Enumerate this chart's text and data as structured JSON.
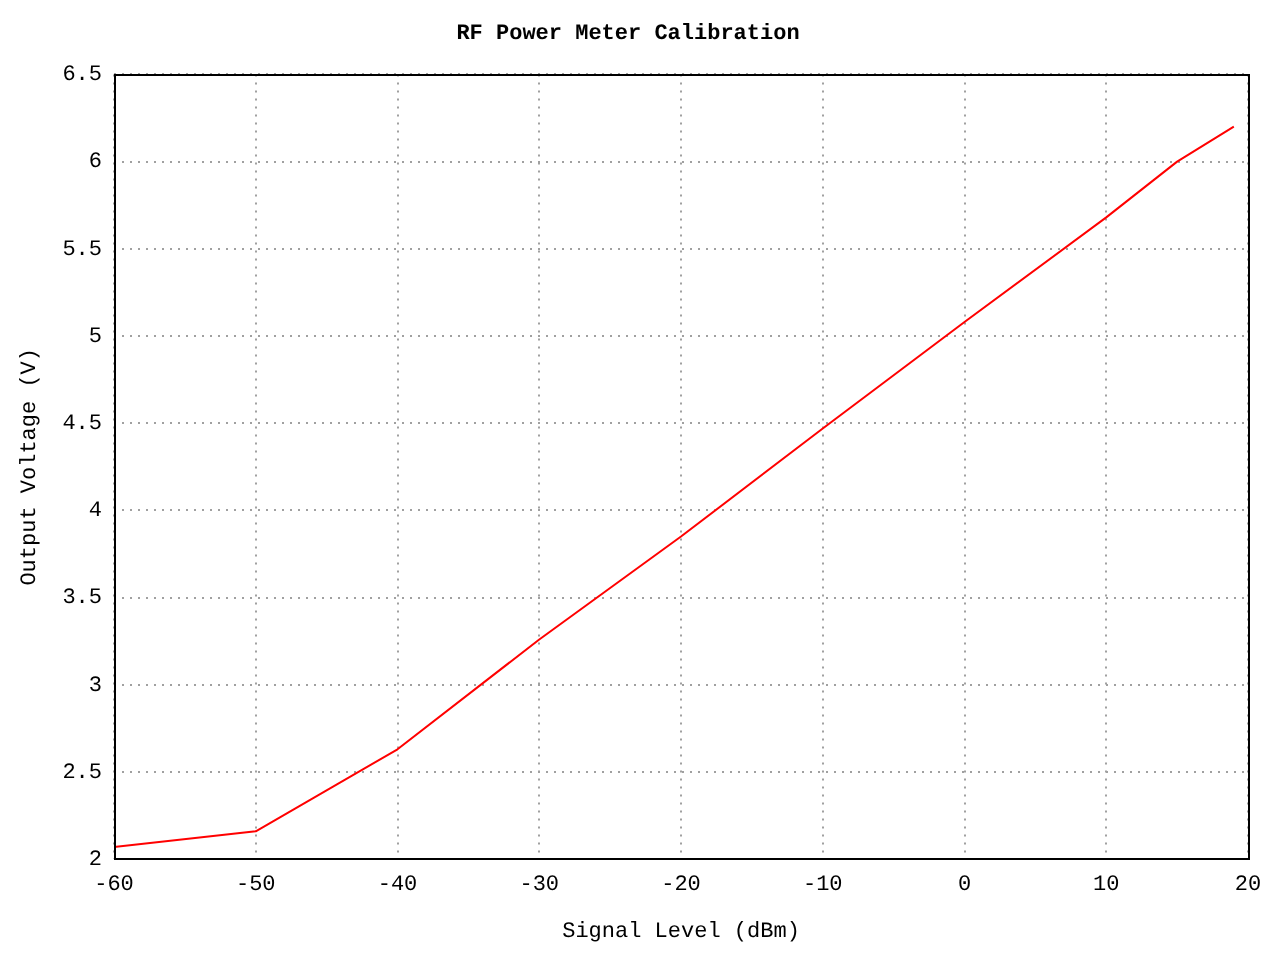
{
  "chart_data": {
    "type": "line",
    "title": "RF Power Meter Calibration",
    "xlabel": "Signal Level (dBm)",
    "ylabel": "Output Voltage (V)",
    "x": [
      -60,
      -50,
      -40,
      -30,
      -20,
      -10,
      0,
      10,
      15,
      19
    ],
    "series": [
      {
        "color": "#ff0000",
        "values": [
          2.07,
          2.16,
          2.63,
          3.26,
          3.85,
          4.47,
          5.08,
          5.68,
          6.0,
          6.2
        ]
      }
    ],
    "xlim": [
      -60,
      20
    ],
    "xticks": [
      -60,
      -50,
      -40,
      -30,
      -20,
      -10,
      0,
      10,
      20
    ],
    "ylim": [
      2,
      6.5
    ],
    "yticks": [
      2,
      2.5,
      3,
      3.5,
      4,
      4.5,
      5,
      5.5,
      6,
      6.5
    ],
    "grid": true,
    "legend": false,
    "marker": "none",
    "line_style": "solid"
  }
}
